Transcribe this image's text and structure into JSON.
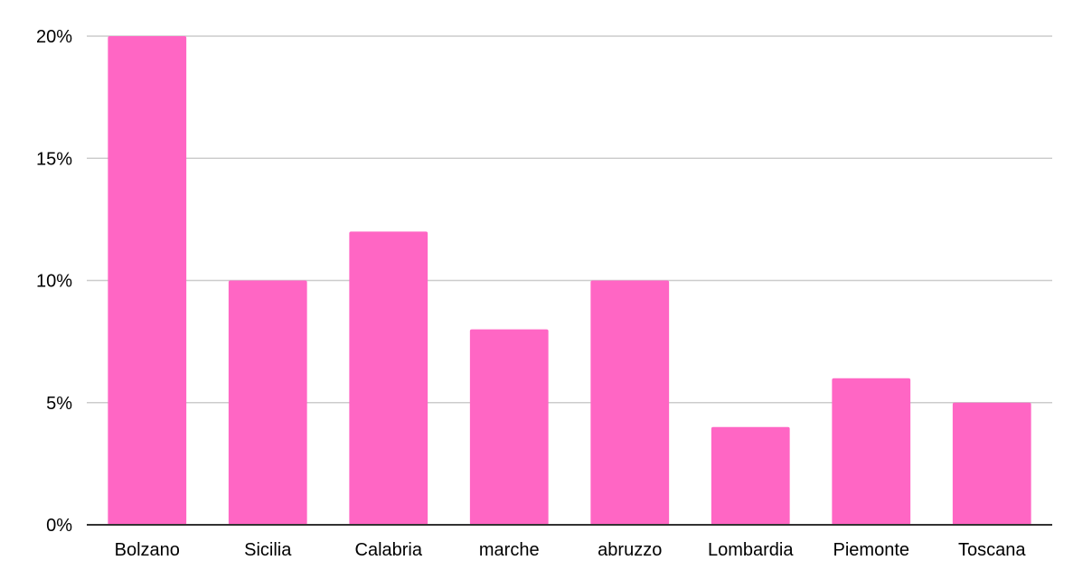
{
  "chart_data": {
    "type": "bar",
    "title": "",
    "xlabel": "",
    "ylabel": "",
    "categories": [
      "Bolzano",
      "Sicilia",
      "Calabria",
      "marche",
      "abruzzo",
      "Lombardia",
      "Piemonte",
      "Toscana"
    ],
    "values": [
      20,
      10,
      12,
      8,
      10,
      4,
      6,
      5
    ],
    "ylim": [
      0,
      20
    ],
    "yticks": [
      0,
      5,
      10,
      15,
      20
    ],
    "ytick_labels": [
      "0%",
      "5%",
      "10%",
      "15%",
      "20%"
    ],
    "grid": true,
    "legend": "none",
    "bar_color": "#ff66c4",
    "grid_color": "#cccccc",
    "axis_color": "#333333"
  }
}
